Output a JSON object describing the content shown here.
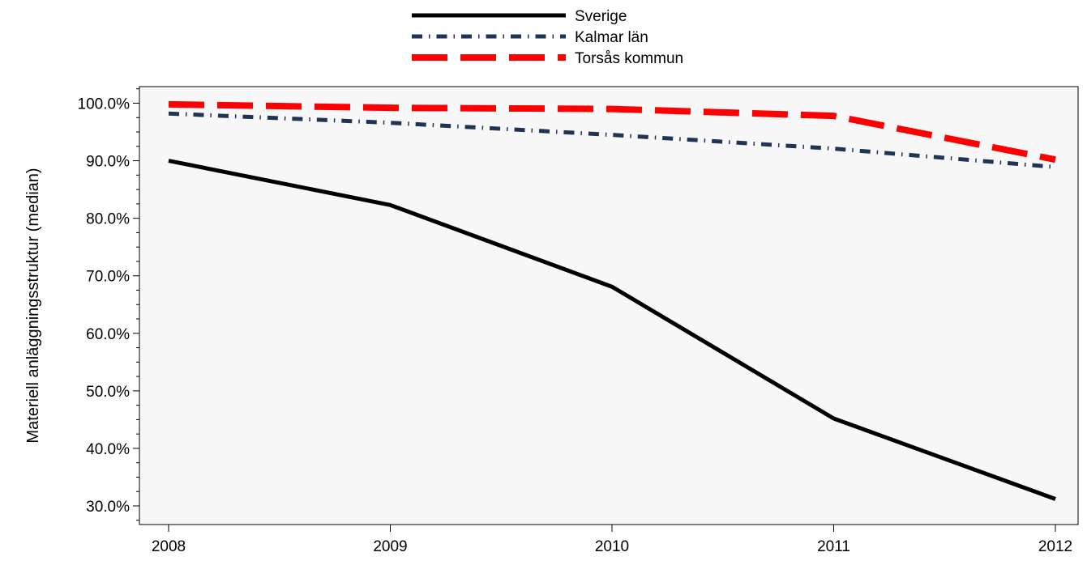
{
  "chart_data": {
    "type": "line",
    "title": "",
    "xlabel": "",
    "ylabel": "Materiell anläggningsstruktur (median)",
    "x": [
      "2008",
      "2009",
      "2010",
      "2011",
      "2012"
    ],
    "xlim": [
      2008,
      2012
    ],
    "ylim": [
      27.5,
      103.5
    ],
    "yticks": [
      30,
      40,
      50,
      60,
      70,
      80,
      90,
      100
    ],
    "ytick_labels": [
      "30.0%",
      "40.0%",
      "50.0%",
      "60.0%",
      "70.0%",
      "80.0%",
      "90.0%",
      "100.0%"
    ],
    "y_unit": "%",
    "grid": false,
    "legend_position": "top-center",
    "plot_background": "#f7f7f7",
    "series": [
      {
        "name": "Sverige",
        "values": [
          90.0,
          82.3,
          68.1,
          45.2,
          31.2
        ],
        "color": "#000000",
        "style": "solid"
      },
      {
        "name": "Kalmar län",
        "values": [
          98.2,
          96.6,
          94.5,
          92.1,
          88.9
        ],
        "color": "#1f3553",
        "style": "dotted-dash"
      },
      {
        "name": "Torsås kommun",
        "values": [
          99.8,
          99.2,
          99.0,
          97.8,
          90.2
        ],
        "color": "#ff0000",
        "style": "long-dash"
      }
    ]
  }
}
